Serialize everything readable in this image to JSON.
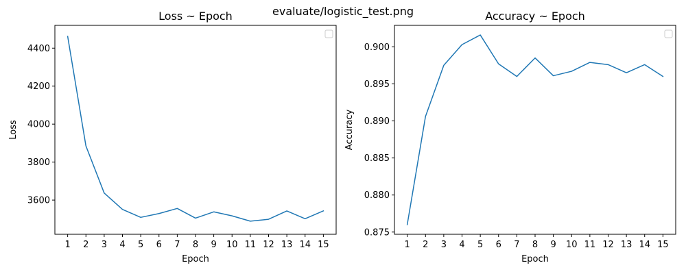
{
  "figure": {
    "suptitle": "evaluate/logistic_test.png",
    "line_color": "#1f77b4"
  },
  "chart_data": [
    {
      "type": "line",
      "title": "Loss ~ Epoch",
      "xlabel": "Epoch",
      "ylabel": "Loss",
      "x": [
        1,
        2,
        3,
        4,
        5,
        6,
        7,
        8,
        9,
        10,
        11,
        12,
        13,
        14,
        15
      ],
      "y": [
        4462,
        3885,
        3637,
        3551,
        3509,
        3529,
        3556,
        3505,
        3538,
        3517,
        3489,
        3499,
        3543,
        3502,
        3543
      ],
      "ylim": [
        3420,
        4520
      ],
      "xticks": [
        "1",
        "2",
        "3",
        "4",
        "5",
        "6",
        "7",
        "8",
        "9",
        "10",
        "11",
        "12",
        "13",
        "14",
        "15"
      ],
      "yticks": [
        "3600",
        "3800",
        "4000",
        "4200",
        "4400"
      ],
      "grid": false,
      "legend": "top-right (empty)"
    },
    {
      "type": "line",
      "title": "Accuracy ~ Epoch",
      "xlabel": "Epoch",
      "ylabel": "Accuracy",
      "x": [
        1,
        2,
        3,
        4,
        5,
        6,
        7,
        8,
        9,
        10,
        11,
        12,
        13,
        14,
        15
      ],
      "y": [
        0.876,
        0.8906,
        0.8975,
        0.9003,
        0.9016,
        0.8977,
        0.896,
        0.8985,
        0.8961,
        0.8967,
        0.8979,
        0.8976,
        0.8965,
        0.8976,
        0.896
      ],
      "ylim": [
        0.8747,
        0.9029
      ],
      "xticks": [
        "1",
        "2",
        "3",
        "4",
        "5",
        "6",
        "7",
        "8",
        "9",
        "10",
        "11",
        "12",
        "13",
        "14",
        "15"
      ],
      "yticks": [
        "0.875",
        "0.880",
        "0.885",
        "0.890",
        "0.895",
        "0.900"
      ],
      "grid": false,
      "legend": "top-right (empty)"
    }
  ]
}
